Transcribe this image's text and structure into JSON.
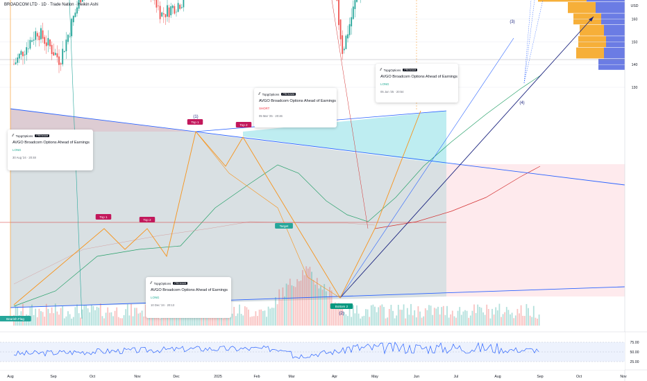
{
  "header": {
    "title": "BROADCOM LTD · 1D · Trade Nation · Heikin Ashi"
  },
  "axis": {
    "currency": "USD",
    "y_ticks": [
      130,
      140,
      150,
      160,
      170,
      180,
      190,
      200,
      210,
      220,
      230,
      240,
      250,
      260,
      270,
      280,
      290,
      300,
      310,
      320,
      330
    ],
    "x_labels": [
      "Aug",
      "Sep",
      "Oct",
      "Nov",
      "Dec",
      "2025",
      "Feb",
      "Mar",
      "Apr",
      "May",
      "Jun",
      "Jul",
      "Aug",
      "Sep",
      "Oct",
      "Nov"
    ],
    "osc_ticks": [
      75,
      50,
      25
    ]
  },
  "price_badges": {
    "current": "302.36",
    "symbol": "AVGO",
    "last": "301.12"
  },
  "labels": {
    "top1_left": "Top 1",
    "top2_left": "Top 2",
    "top1_right": "Top 1",
    "top2_right": "Top 2",
    "target": "Target",
    "bottom2": "Bottom 2",
    "bullish_flag": "Bearish Flag",
    "wave1": "(1)",
    "wave2": "(2)",
    "wave3": "(3)",
    "wave4": "(4)",
    "bull": "Bull",
    "bear": "Bear"
  },
  "ideas": [
    {
      "brand": "TopgOptions",
      "badge": "PREMIUM",
      "title": "AVGO Broadcom Options Ahead of Earnings",
      "tag": "LONG",
      "date": "30 Aug '24 · 20:48"
    },
    {
      "brand": "TopgOptions",
      "badge": "PREMIUM",
      "title": "AVGO Broadcom Options Ahead of Earnings",
      "tag": "SHORT",
      "date": "05 Mar '25 · 20:46"
    },
    {
      "brand": "TopgOptions",
      "badge": "PREMIUM",
      "title": "AVGO Broadcom Options Ahead of Earnings",
      "tag": "LONG",
      "date": "10 Dec '24 · 20:13"
    },
    {
      "brand": "TopgOptions",
      "badge": "PREMIUM",
      "title": "AVGO Broadcom Options Ahead of Earnings",
      "tag": "LONG",
      "date": "05 Jun '25 · 20:54"
    }
  ],
  "colors": {
    "up": "#26a69a",
    "down": "#ef5350",
    "trend": "#2962ff",
    "pattern": "#f7931a",
    "navy": "#1a237e",
    "ma": "#26a069",
    "ma2": "#d32f2f",
    "vp_blue": "#5b6ee1",
    "vp_orange": "#f5a623"
  },
  "chart_data": {
    "type": "candlestick",
    "title": "BROADCOM LTD · 1D · Trade Nation · Heikin Ashi",
    "ylabel": "USD",
    "ylim": [
      120,
      340
    ],
    "x_range": [
      "2024-08",
      "2025-11"
    ],
    "current_price": 302.36,
    "last_price": 301.12,
    "series": [
      {
        "name": "AVGO",
        "approx_close_path": [
          [
            "2024-08",
            138
          ],
          [
            "2024-08-20",
            155
          ],
          [
            "2024-09-06",
            142
          ],
          [
            "2024-09-25",
            175
          ],
          [
            "2024-10-08",
            185
          ],
          [
            "2024-10-25",
            172
          ],
          [
            "2024-11-05",
            180
          ],
          [
            "2024-11-20",
            162
          ],
          [
            "2024-12-05",
            168
          ],
          [
            "2024-12-13",
            222
          ],
          [
            "2024-12-17",
            250
          ],
          [
            "2024-12-30",
            230
          ],
          [
            "2025-01-15",
            236
          ],
          [
            "2025-01-22",
            248
          ],
          [
            "2025-02-05",
            215
          ],
          [
            "2025-02-15",
            238
          ],
          [
            "2025-03-01",
            225
          ],
          [
            "2025-03-12",
            194
          ],
          [
            "2025-03-28",
            190
          ],
          [
            "2025-04-07",
            146
          ],
          [
            "2025-04-20",
            175
          ],
          [
            "2025-05-10",
            205
          ],
          [
            "2025-06-01",
            240
          ],
          [
            "2025-06-20",
            255
          ],
          [
            "2025-07-10",
            275
          ],
          [
            "2025-07-30",
            300
          ],
          [
            "2025-08-12",
            315
          ],
          [
            "2025-08-20",
            290
          ],
          [
            "2025-08-27",
            304
          ],
          [
            "2025-09-02",
            301
          ]
        ]
      }
    ],
    "oscillator": {
      "levels": [
        75,
        50,
        25
      ],
      "approx_last": 52
    }
  }
}
